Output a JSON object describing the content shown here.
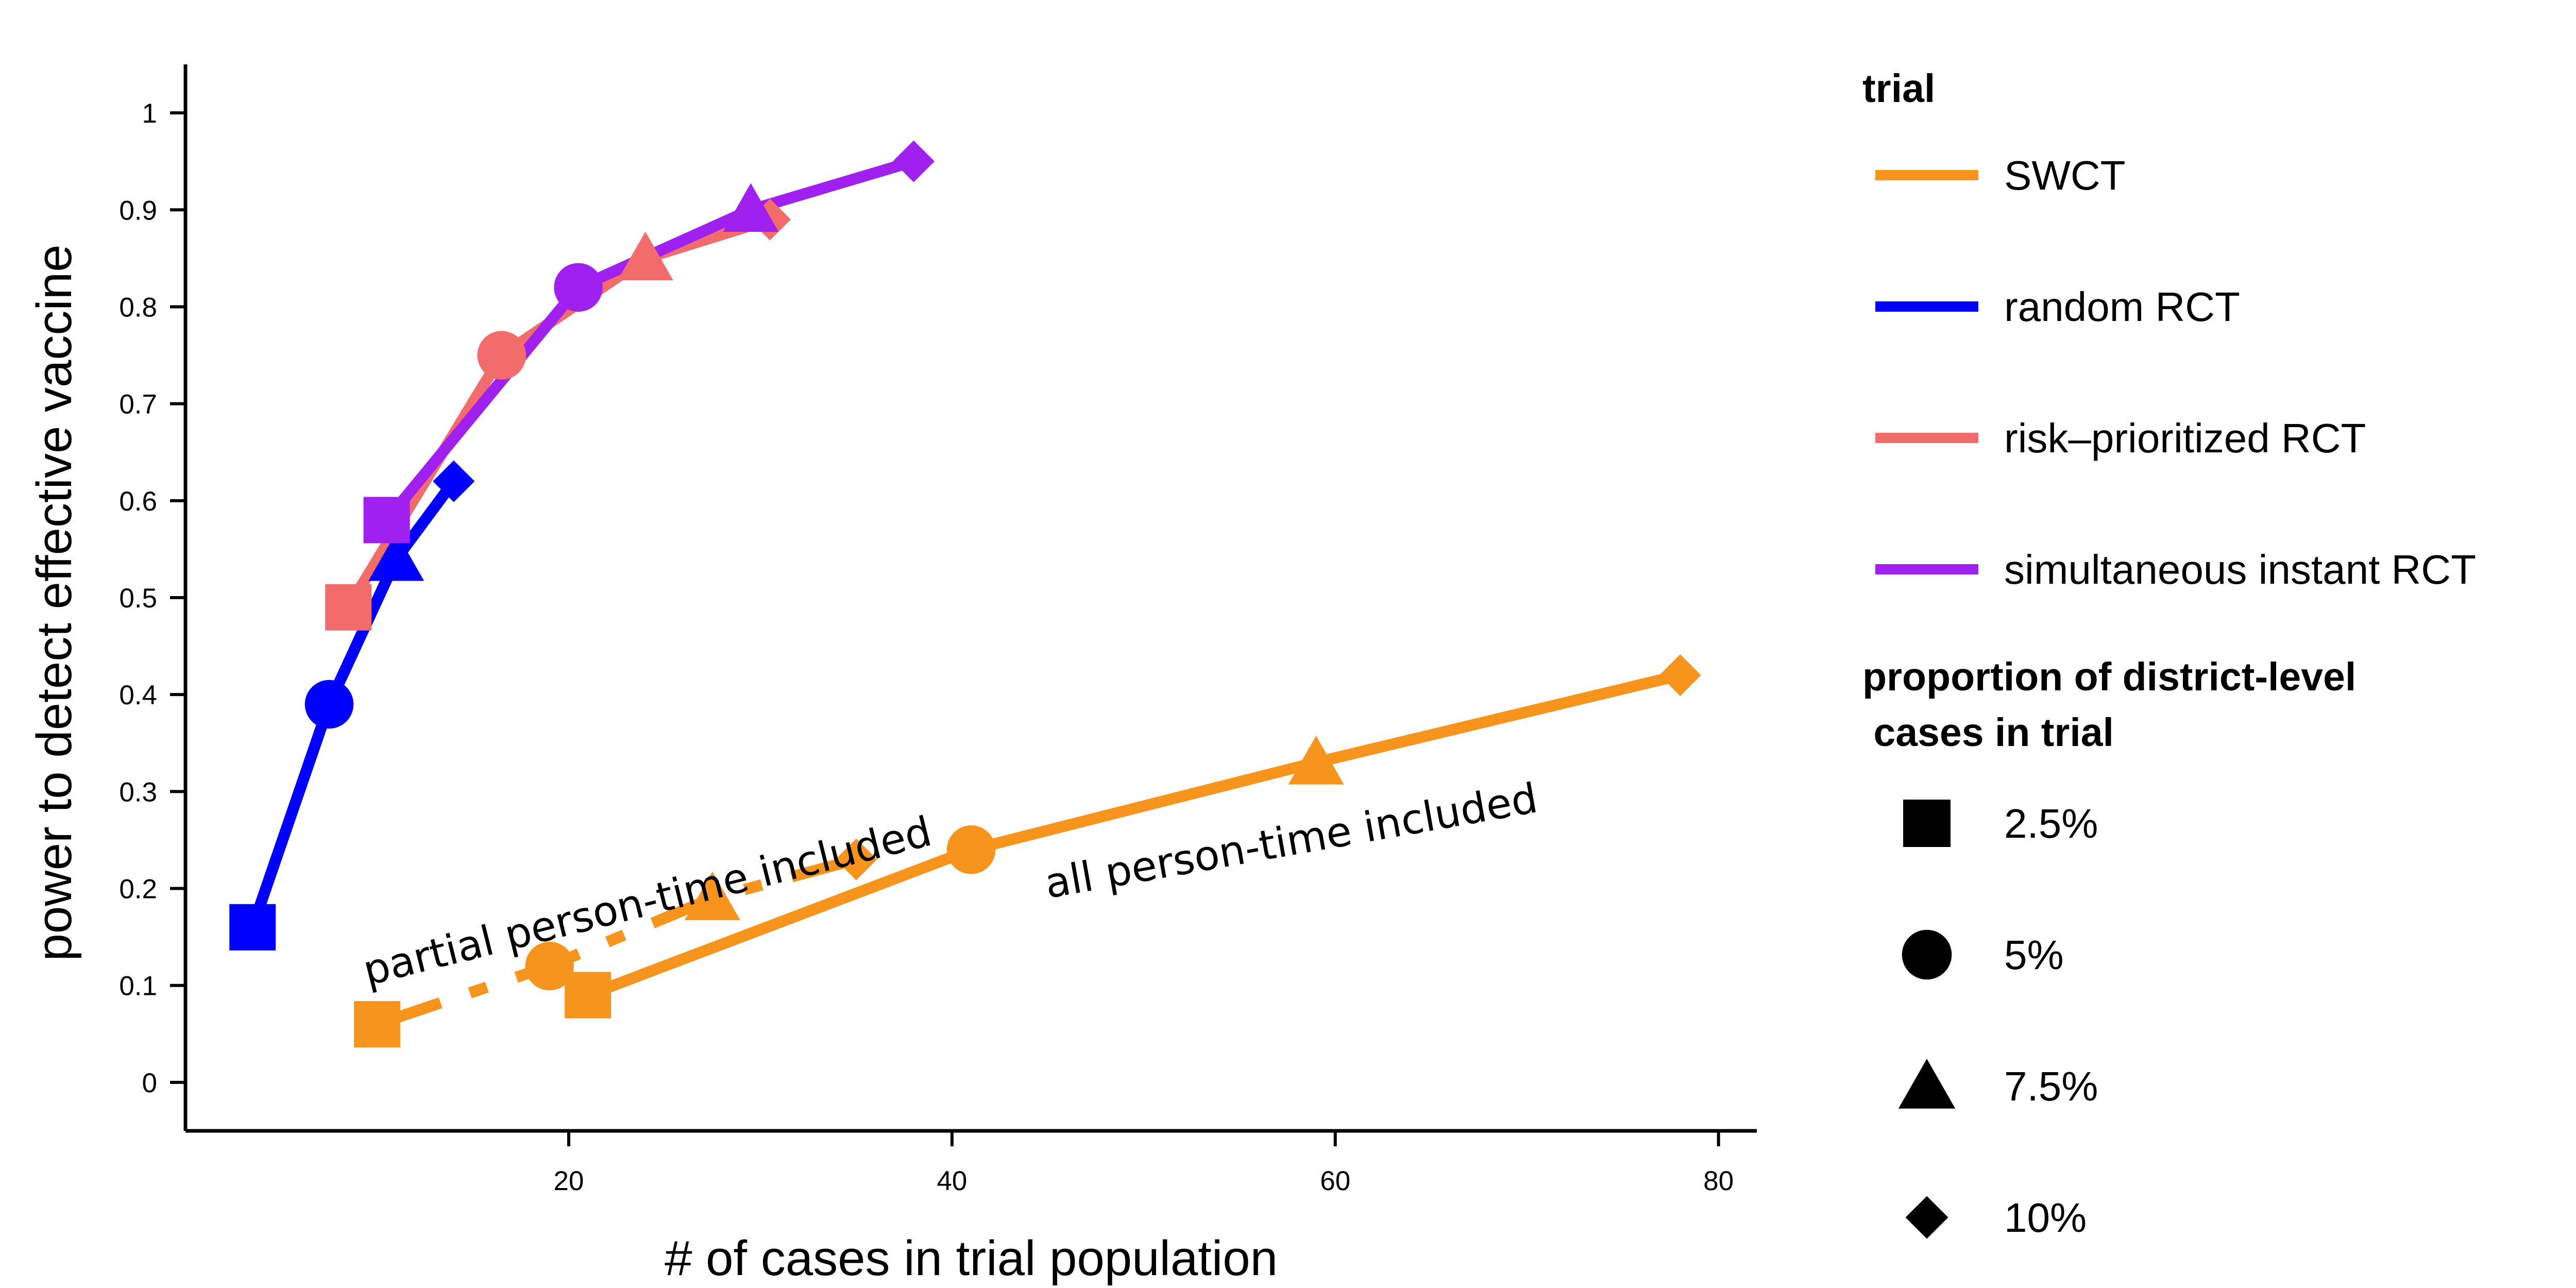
{
  "chart_data": {
    "type": "line",
    "xlabel": "# of cases in trial population",
    "ylabel": "power to detect effective vaccine",
    "xlim": [
      0,
      82
    ],
    "ylim": [
      -0.05,
      1.05
    ],
    "x_ticks": [
      20,
      40,
      60,
      80
    ],
    "y_ticks": [
      0,
      0.1,
      0.2,
      0.3,
      0.4,
      0.5,
      0.6,
      0.7,
      0.8,
      0.9,
      1
    ],
    "series": [
      {
        "name": "SWCT",
        "color": "#F7941D",
        "dash": "solid",
        "x": [
          21,
          41,
          59,
          78
        ],
        "y": [
          0.09,
          0.24,
          0.33,
          0.42
        ]
      },
      {
        "name": "SWCT",
        "color": "#F7941D",
        "dash": "dashdot",
        "x": [
          10,
          19,
          27.5,
          35
        ],
        "y": [
          0.06,
          0.12,
          0.19,
          0.23
        ]
      },
      {
        "name": "random RCT",
        "color": "#0000FF",
        "dash": "solid",
        "x": [
          3.5,
          7.5,
          11,
          14
        ],
        "y": [
          0.16,
          0.39,
          0.54,
          0.62
        ]
      },
      {
        "name": "risk–prioritized RCT",
        "color": "#F26C6C",
        "dash": "solid",
        "x": [
          8.5,
          16.5,
          24,
          30.5
        ],
        "y": [
          0.49,
          0.75,
          0.85,
          0.89
        ]
      },
      {
        "name": "simultaneous instant RCT",
        "color": "#A020F0",
        "dash": "solid",
        "x": [
          10.5,
          20.5,
          29.5,
          38
        ],
        "y": [
          0.58,
          0.82,
          0.9,
          0.95
        ]
      }
    ],
    "marker_order": [
      "square",
      "circle",
      "triangle",
      "diamond"
    ],
    "annotations": [
      {
        "text": "partial person-time included",
        "x": 9.5,
        "y": 0.1,
        "angle_deg": -14
      },
      {
        "text": "all person-time included",
        "x": 45,
        "y": 0.19,
        "angle_deg": -10
      }
    ],
    "legend": {
      "placement": "right",
      "trial_title": "trial",
      "trial_items": [
        {
          "label": "SWCT",
          "color": "#F7941D"
        },
        {
          "label": "random RCT",
          "color": "#0000FF"
        },
        {
          "label": "risk–prioritized RCT",
          "color": "#F26C6C"
        },
        {
          "label": "simultaneous instant RCT",
          "color": "#A020F0"
        }
      ],
      "shape_title_line1": "proportion of district-level",
      "shape_title_line2": " cases in trial",
      "shape_items": [
        {
          "label": "2.5%",
          "shape": "square"
        },
        {
          "label": "5%",
          "shape": "circle"
        },
        {
          "label": "7.5%",
          "shape": "triangle"
        },
        {
          "label": "10%",
          "shape": "diamond"
        }
      ]
    }
  }
}
